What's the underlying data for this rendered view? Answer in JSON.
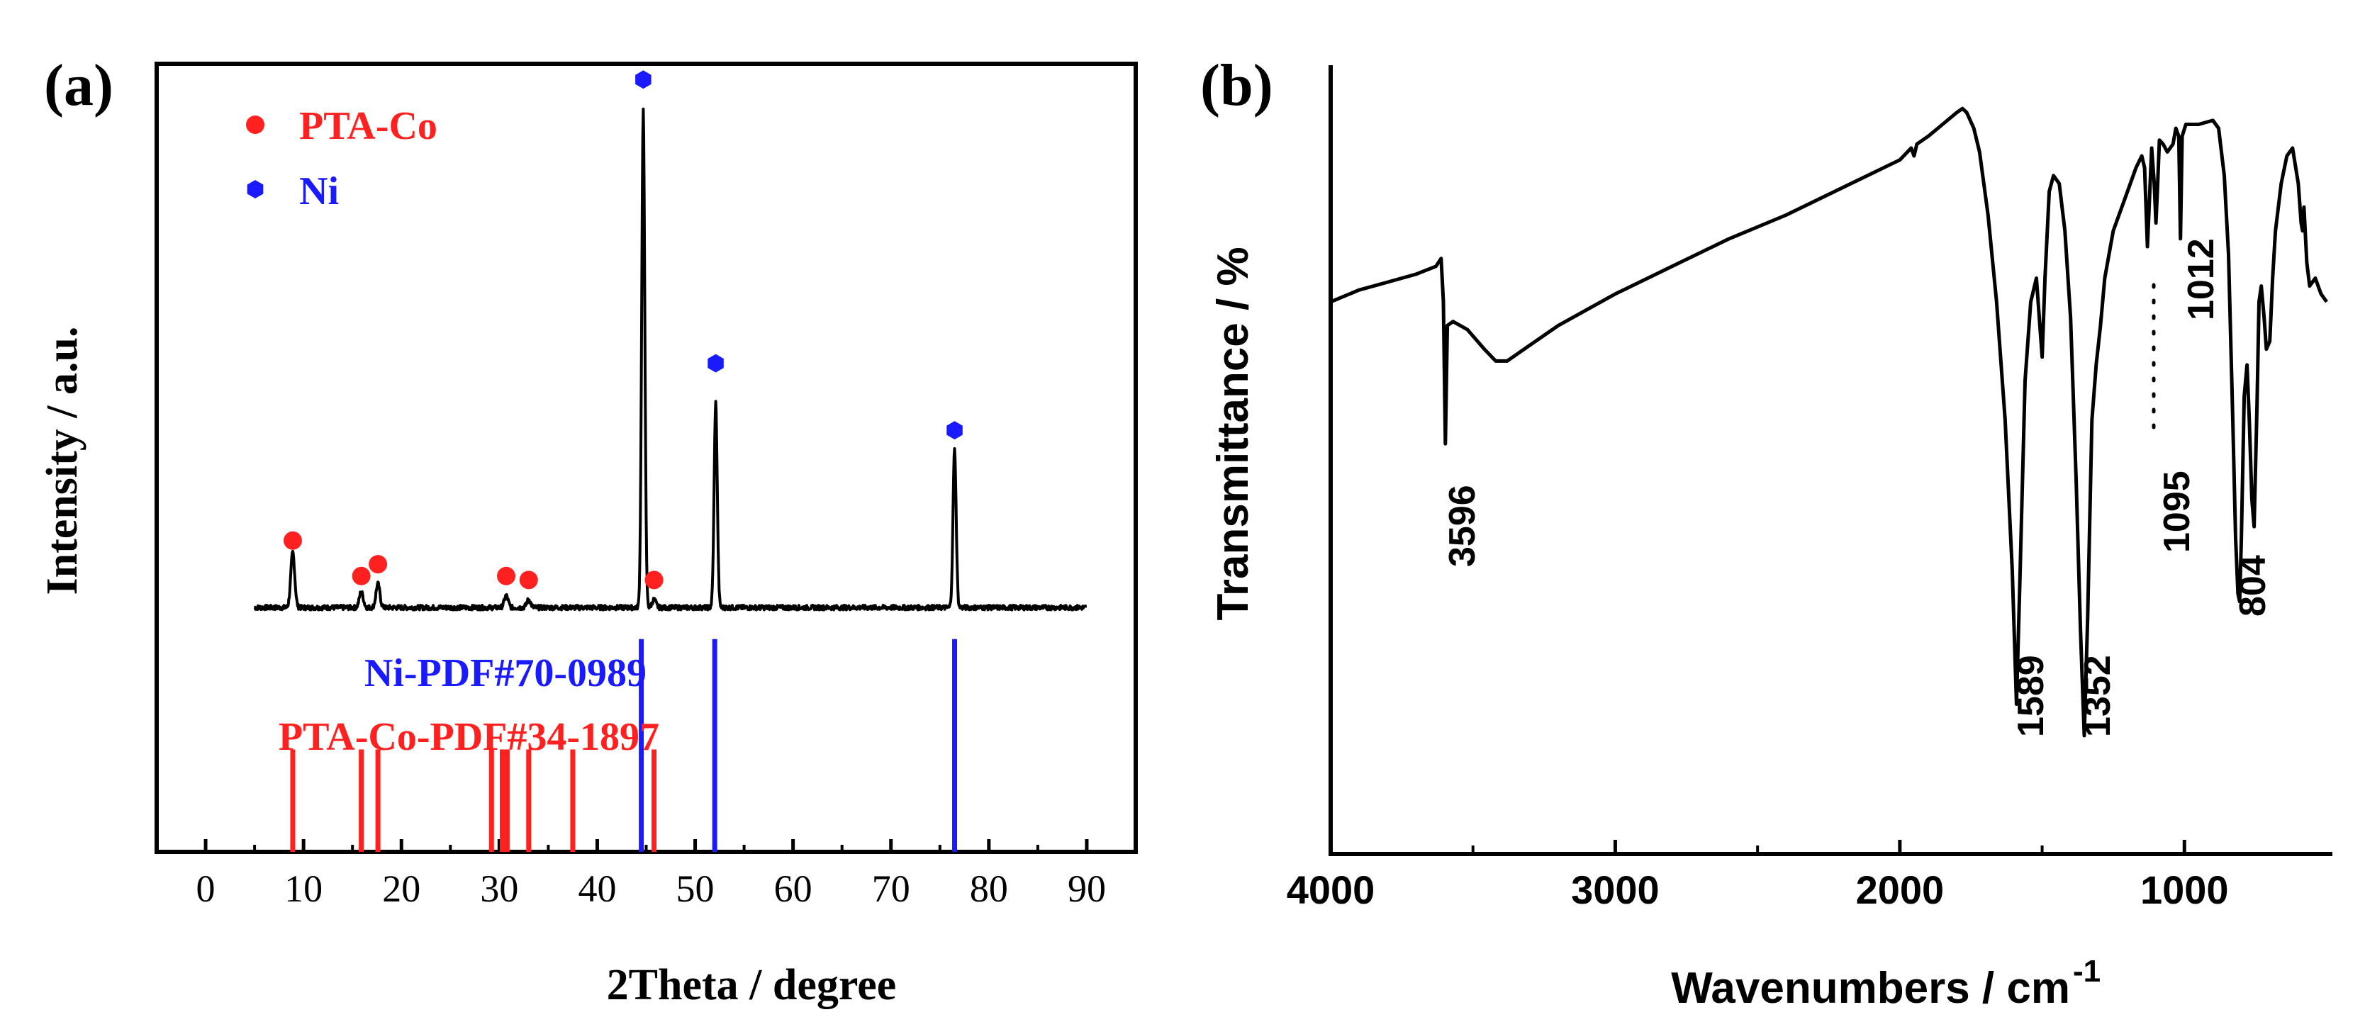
{
  "panel_a": {
    "label": "(a)",
    "xlabel": "2Theta / degree",
    "ylabel": "Intensity / a.u.",
    "legend": [
      {
        "name": "PTA-Co",
        "color": "#ff2020",
        "marker": "circle"
      },
      {
        "name": "Ni",
        "color": "#1a1aff",
        "marker": "hexagon"
      }
    ],
    "ref_labels": {
      "ni": "Ni-PDF#70-0989",
      "ptaco": "PTA-Co-PDF#34-1897"
    }
  },
  "panel_b": {
    "label": "(b)",
    "xlabel": "Wavenumbers / cm",
    "xlabel_sup": "-1",
    "ylabel": "Transmittance / %",
    "peak_labels": [
      "3596",
      "1589",
      "1352",
      "1095",
      "1012",
      "804"
    ]
  },
  "chart_data": [
    {
      "type": "line",
      "title": "(a)",
      "xlabel": "2Theta / degree",
      "ylabel": "Intensity / a.u.",
      "xlim": [
        -5,
        95
      ],
      "ylim": [
        0,
        100
      ],
      "xticks": [
        0,
        10,
        20,
        30,
        40,
        50,
        60,
        70,
        80,
        90
      ],
      "yticks": [],
      "legend": [
        "PTA-Co",
        "Ni"
      ],
      "series": [
        {
          "name": "XRD pattern",
          "color": "#000000",
          "baseline": 31,
          "x_range": [
            5,
            90
          ],
          "peaks": [
            {
              "x": 8.9,
              "h": 7
            },
            {
              "x": 15.9,
              "h": 2
            },
            {
              "x": 17.6,
              "h": 3
            },
            {
              "x": 30.7,
              "h": 1.5
            },
            {
              "x": 33.0,
              "h": 1
            },
            {
              "x": 44.7,
              "h": 63
            },
            {
              "x": 45.8,
              "h": 1
            },
            {
              "x": 52.1,
              "h": 26
            },
            {
              "x": 76.5,
              "h": 20
            }
          ]
        }
      ],
      "markers": [
        {
          "series": "PTA-Co",
          "color": "#ff2020",
          "shape": "circle",
          "points": [
            [
              8.9,
              39.5
            ],
            [
              15.9,
              35
            ],
            [
              17.6,
              36.5
            ],
            [
              30.7,
              35
            ],
            [
              33.0,
              34.5
            ],
            [
              45.8,
              34.5
            ]
          ]
        },
        {
          "series": "Ni",
          "color": "#1a1aff",
          "shape": "hexagon",
          "points": [
            [
              44.7,
              98
            ],
            [
              52.1,
              62
            ],
            [
              76.5,
              53.5
            ]
          ]
        }
      ],
      "reference_lines": [
        {
          "name": "Ni-PDF#70-0989",
          "color": "#1a1aff",
          "positions": [
            44.5,
            52.0,
            76.5
          ],
          "y_range": [
            0,
            27
          ]
        },
        {
          "name": "PTA-Co-PDF#34-1897",
          "color": "#ff2020",
          "positions": [
            8.9,
            15.9,
            17.6,
            29.2,
            30.3,
            30.8,
            33.0,
            37.5,
            45.8
          ],
          "y_range": [
            0,
            13
          ]
        }
      ]
    },
    {
      "type": "line",
      "title": "(b)",
      "xlabel": "Wavenumbers / cm-1",
      "ylabel": "Transmittance / %",
      "xlim": [
        4000,
        500
      ],
      "ylim": [
        0,
        100
      ],
      "xticks": [
        4000,
        3000,
        2000,
        1000
      ],
      "minor_xticks": [
        3500,
        2500,
        1500
      ],
      "yticks": [],
      "series": [
        {
          "name": "FTIR spectrum",
          "color": "#000000",
          "points": [
            [
              4000,
              70
            ],
            [
              3900,
              71.5
            ],
            [
              3800,
              72.5
            ],
            [
              3700,
              73.5
            ],
            [
              3630,
              74.5
            ],
            [
              3612,
              75.5
            ],
            [
              3604,
              70
            ],
            [
              3597,
              52
            ],
            [
              3590,
              67
            ],
            [
              3570,
              67.5
            ],
            [
              3520,
              66.5
            ],
            [
              3460,
              64
            ],
            [
              3420,
              62.5
            ],
            [
              3380,
              62.5
            ],
            [
              3300,
              64.5
            ],
            [
              3200,
              67
            ],
            [
              3000,
              71
            ],
            [
              2800,
              74.5
            ],
            [
              2600,
              78
            ],
            [
              2400,
              81
            ],
            [
              2200,
              84.5
            ],
            [
              2000,
              88
            ],
            [
              1960,
              89.5
            ],
            [
              1950,
              88.5
            ],
            [
              1940,
              90
            ],
            [
              1900,
              91
            ],
            [
              1850,
              92.5
            ],
            [
              1800,
              94
            ],
            [
              1780,
              94.5
            ],
            [
              1765,
              94
            ],
            [
              1740,
              92
            ],
            [
              1720,
              89
            ],
            [
              1690,
              81
            ],
            [
              1660,
              70
            ],
            [
              1630,
              55
            ],
            [
              1605,
              36
            ],
            [
              1590,
              19
            ],
            [
              1578,
              35
            ],
            [
              1560,
              60
            ],
            [
              1540,
              70
            ],
            [
              1520,
              73
            ],
            [
              1500,
              63
            ],
            [
              1490,
              73
            ],
            [
              1475,
              84
            ],
            [
              1460,
              86
            ],
            [
              1440,
              85
            ],
            [
              1420,
              79
            ],
            [
              1400,
              68
            ],
            [
              1380,
              47
            ],
            [
              1365,
              28
            ],
            [
              1352,
              15
            ],
            [
              1340,
              30
            ],
            [
              1325,
              55
            ],
            [
              1310,
              62
            ],
            [
              1295,
              67
            ],
            [
              1280,
              73
            ],
            [
              1250,
              79
            ],
            [
              1200,
              84
            ],
            [
              1170,
              87
            ],
            [
              1150,
              88.5
            ],
            [
              1140,
              87
            ],
            [
              1130,
              77
            ],
            [
              1115,
              89.5
            ],
            [
              1106,
              85
            ],
            [
              1100,
              80
            ],
            [
              1095,
              84
            ],
            [
              1088,
              90.5
            ],
            [
              1075,
              90
            ],
            [
              1060,
              89
            ],
            [
              1040,
              90
            ],
            [
              1030,
              92
            ],
            [
              1020,
              91
            ],
            [
              1014,
              78
            ],
            [
              1008,
              91
            ],
            [
              995,
              92.5
            ],
            [
              950,
              92.5
            ],
            [
              900,
              93
            ],
            [
              880,
              92
            ],
            [
              860,
              86
            ],
            [
              845,
              76
            ],
            [
              830,
              55
            ],
            [
              820,
              40
            ],
            [
              812,
              33
            ],
            [
              806,
              32
            ],
            [
              800,
              40
            ],
            [
              790,
              58
            ],
            [
              780,
              62
            ],
            [
              772,
              55
            ],
            [
              763,
              45
            ],
            [
              755,
              41.5
            ],
            [
              745,
              57
            ],
            [
              738,
              70
            ],
            [
              730,
              72
            ],
            [
              720,
              68
            ],
            [
              712,
              64
            ],
            [
              700,
              65
            ],
            [
              690,
              73
            ],
            [
              680,
              79
            ],
            [
              660,
              85
            ],
            [
              640,
              88.5
            ],
            [
              620,
              89.5
            ],
            [
              600,
              85
            ],
            [
              590,
              80
            ],
            [
              585,
              79
            ],
            [
              580,
              82
            ],
            [
              570,
              75
            ],
            [
              560,
              72
            ],
            [
              540,
              73
            ],
            [
              520,
              71
            ],
            [
              500,
              70
            ]
          ]
        }
      ],
      "annotations": [
        "3596",
        "1589",
        "1352",
        "1095",
        "1012",
        "804"
      ]
    }
  ]
}
